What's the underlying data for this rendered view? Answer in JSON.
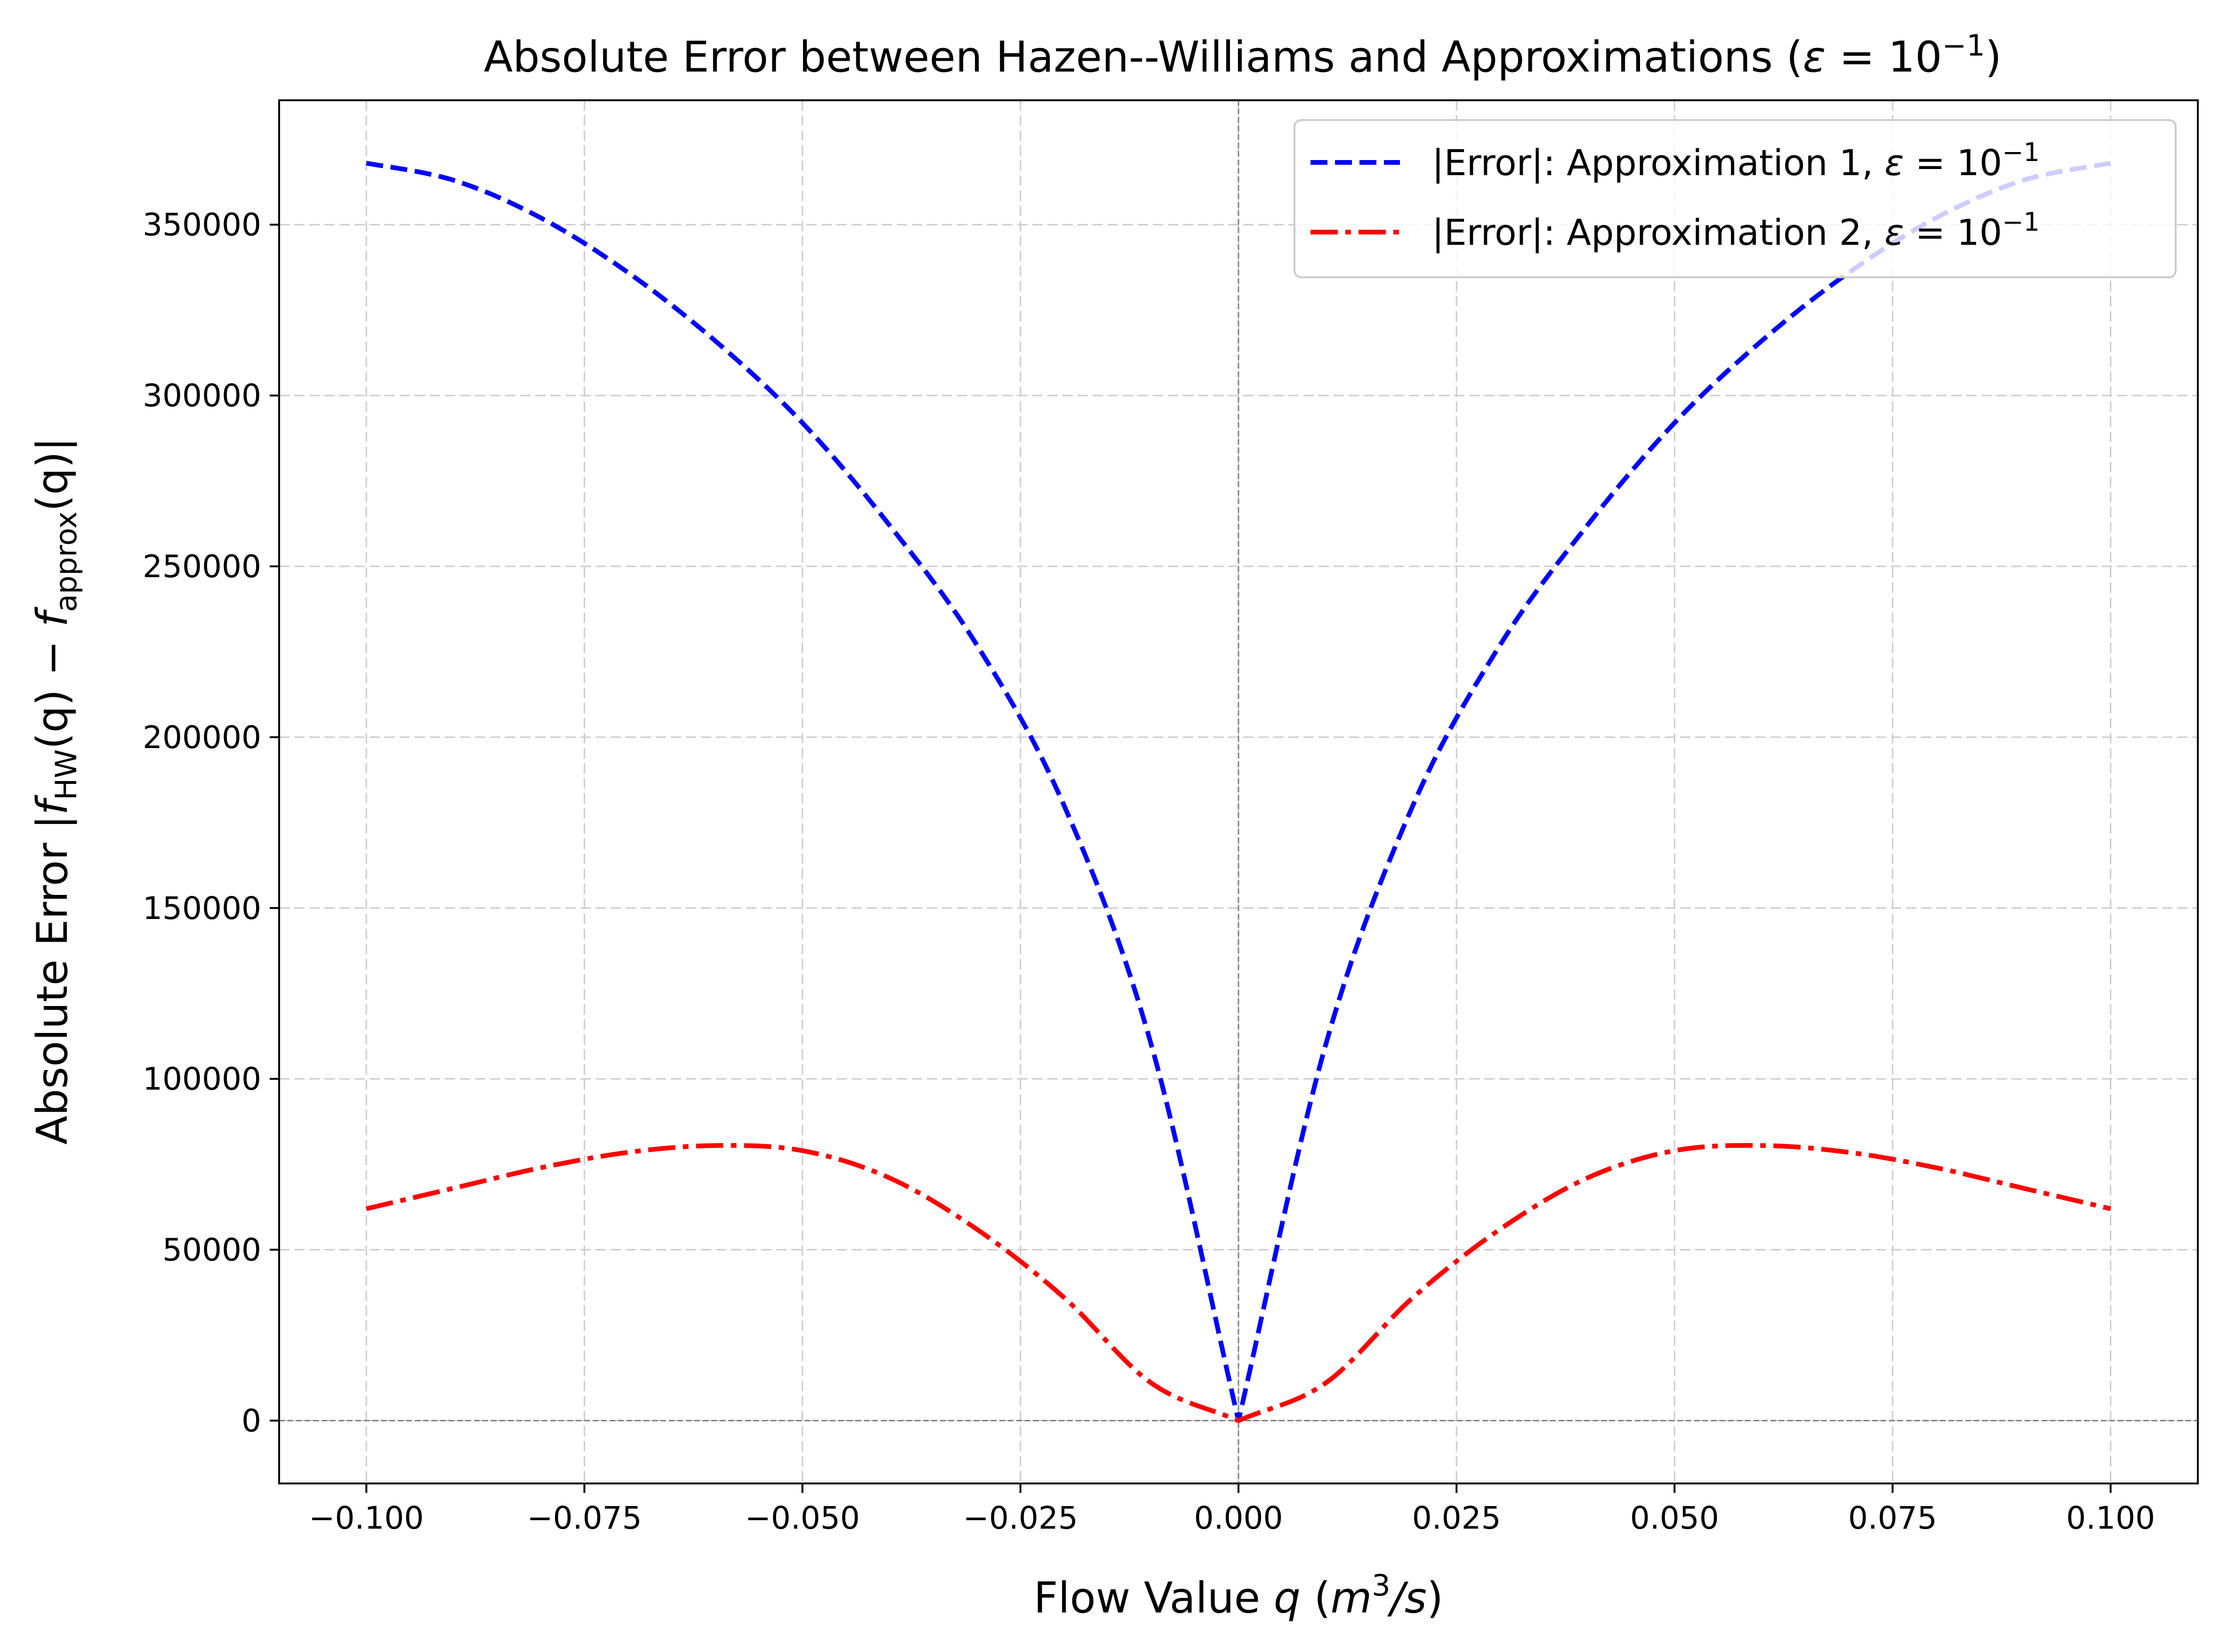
{
  "chart_data": {
    "type": "line",
    "title": "Absolute Error between Hazen--Williams and Approximations (ε = 10⁻¹)",
    "title_parts": {
      "prefix": "Absolute Error between Hazen--Williams and Approximations (",
      "epsilon": "ε",
      "equals": " = 10",
      "exponent": "−1",
      "suffix": ")"
    },
    "xlabel": "Flow Value q (m³/s)",
    "xlabel_parts": {
      "prefix": "Flow Value ",
      "q": "q",
      "open": " (",
      "m": "m",
      "exp": "3",
      "slash_s": "/s",
      "close": ")"
    },
    "ylabel": "Absolute Error |f_HW(q) − f_approx(q)|",
    "ylabel_parts": {
      "prefix": "Absolute Error |",
      "f1": "f",
      "sub1": "HW",
      "q1": "(q) − ",
      "f2": "f",
      "sub2": "approx",
      "q2": "(q)|"
    },
    "xlim": [
      -0.11,
      0.11
    ],
    "ylim": [
      -18400,
      386400
    ],
    "x_ticks": [
      -0.1,
      -0.075,
      -0.05,
      -0.025,
      0.0,
      0.025,
      0.05,
      0.075,
      0.1
    ],
    "x_tick_labels": [
      "−0.100",
      "−0.075",
      "−0.050",
      "−0.025",
      "0.000",
      "0.025",
      "0.050",
      "0.075",
      "0.100"
    ],
    "y_ticks": [
      0,
      50000,
      100000,
      150000,
      200000,
      250000,
      300000,
      350000
    ],
    "y_tick_labels": [
      "0",
      "50000",
      "100000",
      "150000",
      "200000",
      "250000",
      "300000",
      "350000"
    ],
    "grid": true,
    "legend_position": "upper right",
    "reference_lines": {
      "horizontal_y": 0,
      "vertical_x": 0
    },
    "x": [
      -0.1,
      -0.09,
      -0.08,
      -0.07,
      -0.06,
      -0.05,
      -0.04,
      -0.03,
      -0.02,
      -0.01,
      0.0,
      0.01,
      0.02,
      0.03,
      0.04,
      0.05,
      0.06,
      0.07,
      0.08,
      0.09,
      0.1
    ],
    "series": [
      {
        "name": "|Error|: Approximation 1, ε = 10⁻¹",
        "legend_parts": {
          "prefix": "|Error|: Approximation 1, ",
          "epsilon": "ε",
          "equals": " = 10",
          "exponent": "−1"
        },
        "color": "#0000ff",
        "linestyle": "dashed",
        "values": [
          368000,
          363000,
          352000,
          336000,
          316000,
          292000,
          262000,
          227000,
          180000,
          110000,
          0,
          110000,
          180000,
          227000,
          262000,
          292000,
          316000,
          336000,
          352000,
          363000,
          368000
        ]
      },
      {
        "name": "|Error|: Approximation 2, ε = 10⁻¹",
        "legend_parts": {
          "prefix": "|Error|: Approximation 2, ",
          "epsilon": "ε",
          "equals": " = 10",
          "exponent": "−1"
        },
        "color": "#ff0000",
        "linestyle": "dashdot",
        "values": [
          62000,
          68000,
          74000,
          78500,
          80500,
          79000,
          71000,
          56000,
          36000,
          11000,
          0,
          11000,
          36000,
          56000,
          71000,
          79000,
          80500,
          78500,
          74000,
          68000,
          62000
        ]
      }
    ]
  },
  "colors": {
    "axes": "#000000",
    "grid": "#cccccc",
    "reference_line": "#808080",
    "legend_border": "#cccccc"
  }
}
